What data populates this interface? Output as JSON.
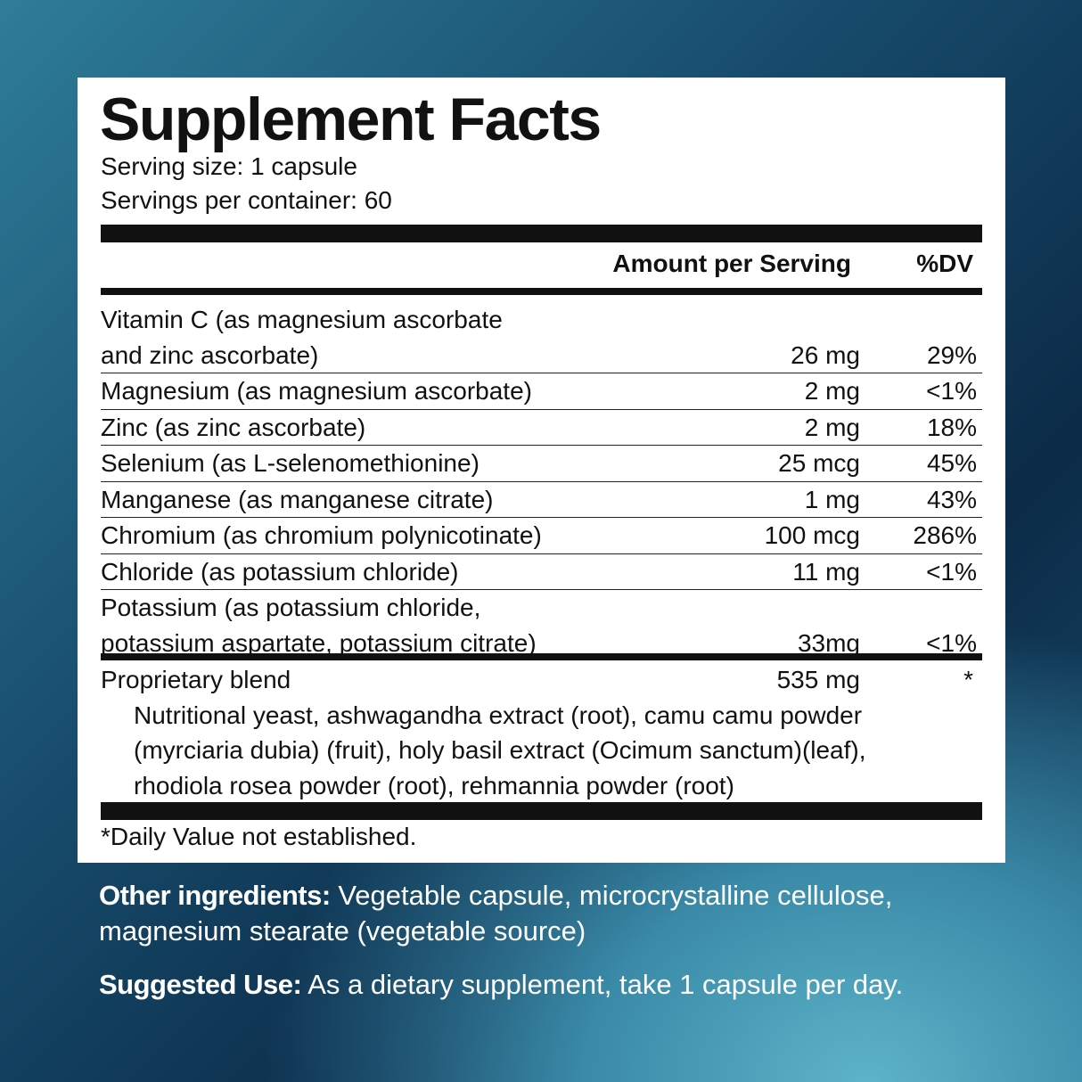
{
  "label": {
    "title": "Supplement Facts",
    "serving_size": "Serving size: 1 capsule",
    "servings_per_container": "Servings per container: 60",
    "header": {
      "amount": "Amount per Serving",
      "dv": "%DV"
    },
    "rows": [
      {
        "name": [
          "Vitamin C (as magnesium ascorbate",
          "and zinc ascorbate)"
        ],
        "amount": "26 mg",
        "dv": "29%"
      },
      {
        "name": [
          "Magnesium (as magnesium ascorbate)"
        ],
        "amount": "2 mg",
        "dv": "<1%"
      },
      {
        "name": [
          "Zinc (as zinc ascorbate)"
        ],
        "amount": "2 mg",
        "dv": "18%"
      },
      {
        "name": [
          "Selenium (as L-selenomethionine)"
        ],
        "amount": "25 mcg",
        "dv": "45%"
      },
      {
        "name": [
          "Manganese (as manganese citrate)"
        ],
        "amount": "1 mg",
        "dv": "43%"
      },
      {
        "name": [
          "Chromium (as chromium polynicotinate)"
        ],
        "amount": "100 mcg",
        "dv": "286%"
      },
      {
        "name": [
          "Chloride (as potassium chloride)"
        ],
        "amount": "11 mg",
        "dv": "<1%"
      },
      {
        "name": [
          "Potassium (as potassium chloride,",
          "potassium aspartate, potassium citrate)"
        ],
        "amount": "33mg",
        "dv": "<1%"
      }
    ],
    "blend": {
      "name": "Proprietary blend",
      "amount": "535 mg",
      "dv": "*",
      "ingredients": [
        "Nutritional yeast, ashwagandha extract (root), camu camu powder",
        "(myrciaria dubia) (fruit), holy basil extract (Ocimum sanctum)(leaf),",
        "rhodiola rosea powder (root), rehmannia powder (root)"
      ]
    },
    "footnote": "*Daily Value not established."
  },
  "other_ingredients": {
    "label": "Other ingredients:",
    "lines": [
      "Vegetable capsule, microcrystalline cellulose,",
      "magnesium stearate (vegetable source)"
    ]
  },
  "suggested_use": {
    "label": "Suggested Use:",
    "text": "As a dietary supplement, take 1 capsule per day."
  }
}
